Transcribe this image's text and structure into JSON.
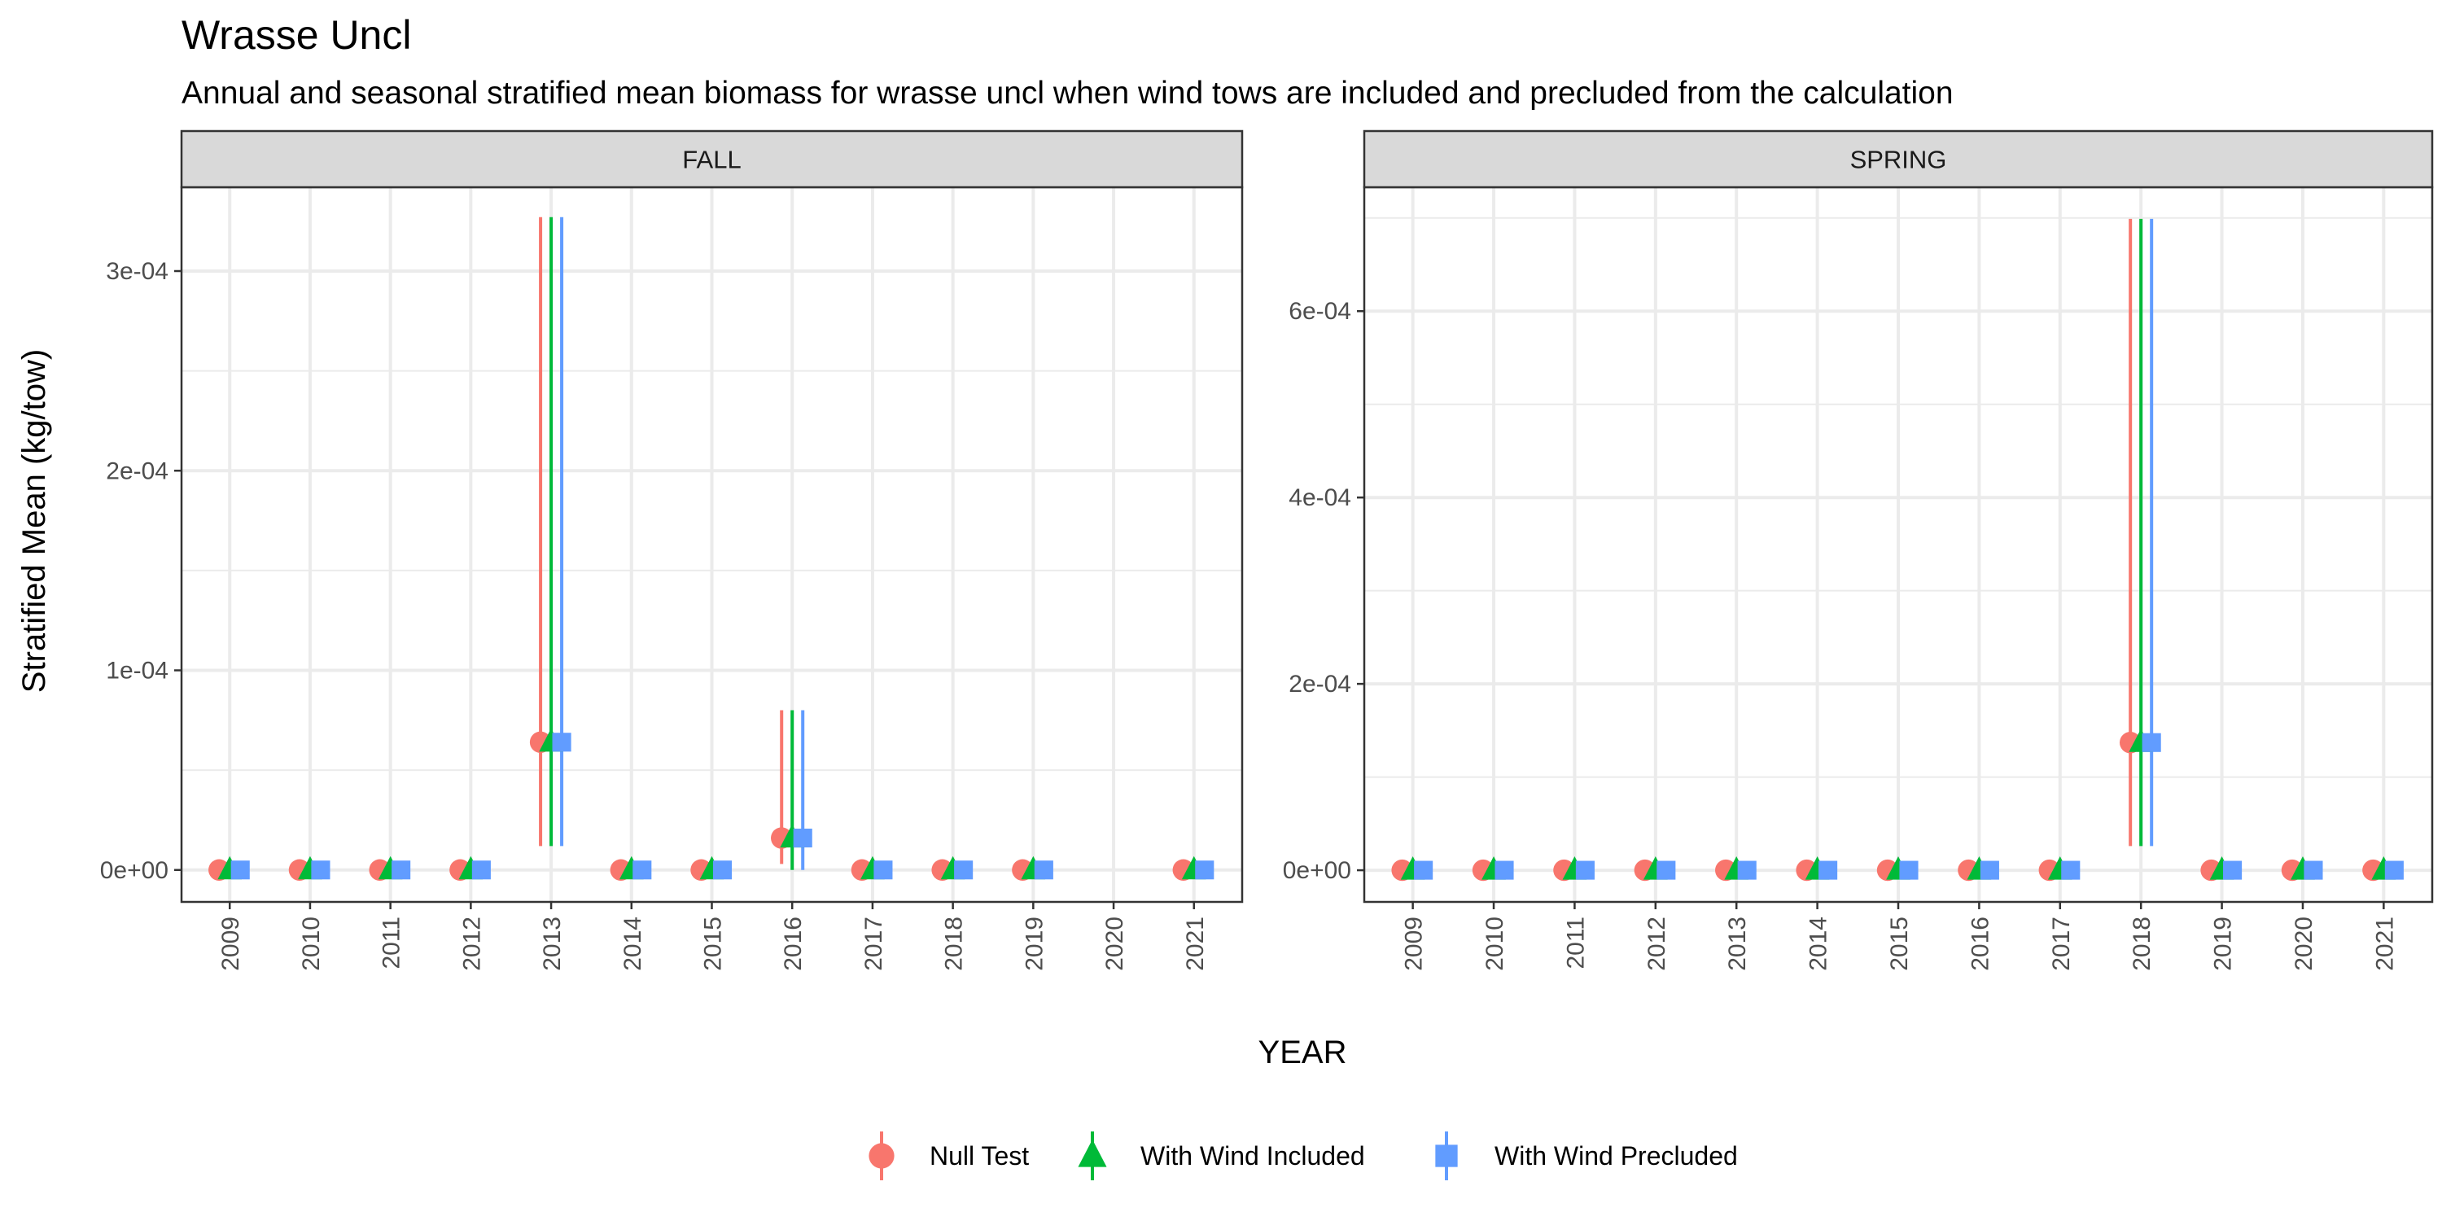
{
  "chart_data": {
    "type": "scatter",
    "title": "Wrasse Uncl",
    "subtitle": "Annual and seasonal stratified mean biomass for wrasse uncl when wind tows are included and precluded from the calculation",
    "xlabel": "YEAR",
    "ylabel": "Stratified Mean (kg/tow)",
    "grid": true,
    "legend_position": "bottom",
    "series_styles": [
      {
        "name": "Null Test",
        "color": "#F8766D",
        "shape": "circle"
      },
      {
        "name": "With Wind Included",
        "color": "#00BA38",
        "shape": "triangle"
      },
      {
        "name": "With Wind Precluded",
        "color": "#619CFF",
        "shape": "square"
      }
    ],
    "panels": [
      {
        "name": "FALL",
        "x": [
          "2009",
          "2010",
          "2011",
          "2012",
          "2013",
          "2014",
          "2015",
          "2016",
          "2017",
          "2018",
          "2019",
          "2020",
          "2021"
        ],
        "ylim": [
          -1.6e-05,
          0.000342
        ],
        "yticks": [
          0,
          0.0001,
          0.0002,
          0.0003
        ],
        "ytick_labels": [
          "0e+00",
          "1e-04",
          "2e-04",
          "3e-04"
        ],
        "series": [
          {
            "name": "Null Test",
            "values": [
              0,
              0,
              0,
              0,
              6.4e-05,
              0,
              0,
              1.6e-05,
              0,
              0,
              0,
              null,
              0
            ],
            "lower": [
              0,
              0,
              0,
              0,
              1.2e-05,
              0,
              0,
              3e-06,
              0,
              0,
              0,
              null,
              0
            ],
            "upper": [
              0,
              0,
              0,
              0,
              0.000327,
              0,
              0,
              8e-05,
              0,
              0,
              0,
              null,
              0
            ]
          },
          {
            "name": "With Wind Included",
            "values": [
              0,
              0,
              0,
              0,
              6.4e-05,
              0,
              0,
              1.6e-05,
              0,
              0,
              0,
              null,
              0
            ],
            "lower": [
              0,
              0,
              0,
              0,
              1.2e-05,
              0,
              0,
              0.0,
              0,
              0,
              0,
              null,
              0
            ],
            "upper": [
              0,
              0,
              0,
              0,
              0.000327,
              0,
              0,
              8e-05,
              0,
              0,
              0,
              null,
              0
            ]
          },
          {
            "name": "With Wind Precluded",
            "values": [
              0,
              0,
              0,
              0,
              6.4e-05,
              0,
              0,
              1.6e-05,
              0,
              0,
              0,
              null,
              0
            ],
            "lower": [
              0,
              0,
              0,
              0,
              1.2e-05,
              0,
              0,
              0.0,
              0,
              0,
              0,
              null,
              0
            ],
            "upper": [
              0,
              0,
              0,
              0,
              0.000327,
              0,
              0,
              8e-05,
              0,
              0,
              0,
              null,
              0
            ]
          }
        ]
      },
      {
        "name": "SPRING",
        "x": [
          "2009",
          "2010",
          "2011",
          "2012",
          "2013",
          "2014",
          "2015",
          "2016",
          "2017",
          "2018",
          "2019",
          "2020",
          "2021"
        ],
        "ylim": [
          -3.4e-05,
          0.000733
        ],
        "yticks": [
          0,
          0.0002,
          0.0004,
          0.0006
        ],
        "ytick_labels": [
          "0e+00",
          "2e-04",
          "4e-04",
          "6e-04"
        ],
        "series": [
          {
            "name": "Null Test",
            "values": [
              0,
              0,
              0,
              0,
              0,
              0,
              0,
              0,
              0,
              0.000137,
              0,
              0,
              0
            ],
            "lower": [
              0,
              0,
              0,
              0,
              0,
              0,
              0,
              0,
              0,
              2.6e-05,
              0,
              0,
              0
            ],
            "upper": [
              0,
              0,
              0,
              0,
              0,
              0,
              0,
              0,
              0,
              0.000699,
              0,
              0,
              0
            ]
          },
          {
            "name": "With Wind Included",
            "values": [
              0,
              0,
              0,
              0,
              0,
              0,
              0,
              0,
              0,
              0.000137,
              0,
              0,
              0
            ],
            "lower": [
              0,
              0,
              0,
              0,
              0,
              0,
              0,
              0,
              0,
              2.6e-05,
              0,
              0,
              0
            ],
            "upper": [
              0,
              0,
              0,
              0,
              0,
              0,
              0,
              0,
              0,
              0.000699,
              0,
              0,
              0
            ]
          },
          {
            "name": "With Wind Precluded",
            "values": [
              0,
              0,
              0,
              0,
              0,
              0,
              0,
              0,
              0,
              0.000137,
              0,
              0,
              0
            ],
            "lower": [
              0,
              0,
              0,
              0,
              0,
              0,
              0,
              0,
              0,
              2.6e-05,
              0,
              0,
              0
            ],
            "upper": [
              0,
              0,
              0,
              0,
              0,
              0,
              0,
              0,
              0,
              0.000699,
              0,
              0,
              0
            ]
          }
        ]
      }
    ]
  }
}
